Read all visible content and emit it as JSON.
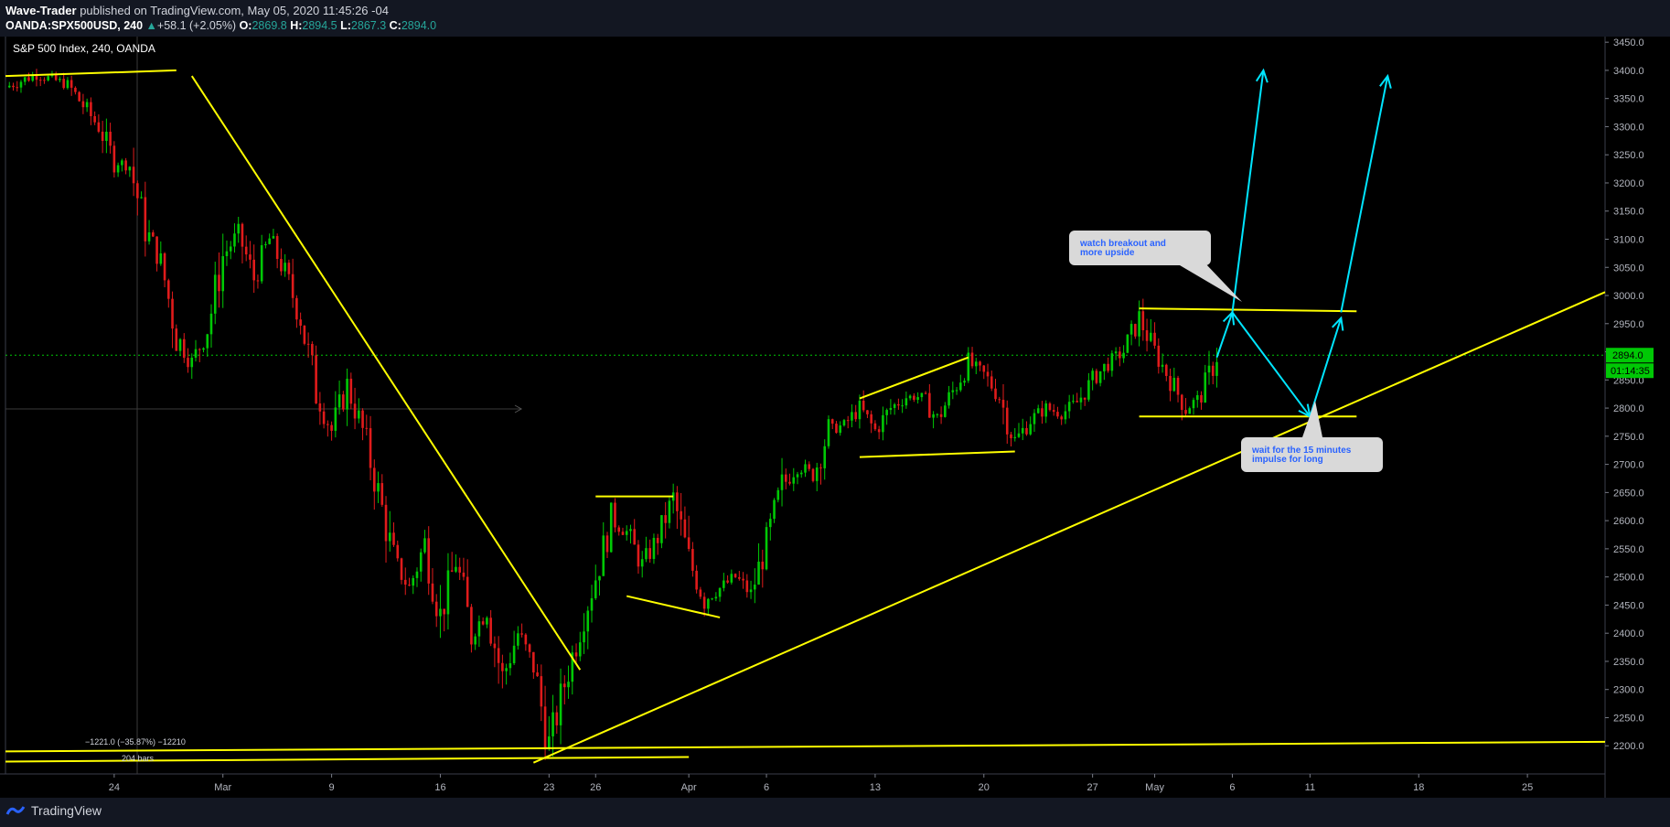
{
  "header": {
    "author": "Wave-Trader",
    "published_text": "published on TradingView.com, May 05, 2020 11:45:26 -04",
    "symbol": "OANDA:SPX500USD, 240",
    "change_arrow": "▲",
    "change": "+58.1 (+2.05%)",
    "o_label": "O:",
    "o_value": "2869.8",
    "h_label": "H:",
    "h_value": "2894.5",
    "l_label": "L:",
    "l_value": "2867.3",
    "c_label": "C:",
    "c_value": "2894.0"
  },
  "footer": {
    "brand": "TradingView",
    "brand_icon": "tradingview-logo-icon"
  },
  "colors": {
    "background": "#000000",
    "bull": "#00c805",
    "bear": "#e01b1b",
    "trendline": "#ffff00",
    "projection": "#00e5ff",
    "price_line": "#00c805",
    "callout_bg": "#d9d9d9",
    "callout_text": "#2962ff"
  },
  "chart_data": {
    "type": "candlestick",
    "title": "S&P 500 Index, 240, OANDA",
    "ylim": [
      2150,
      3460
    ],
    "y_ticks": [
      2200,
      2250,
      2300,
      2350,
      2400,
      2450,
      2500,
      2550,
      2600,
      2650,
      2700,
      2750,
      2800,
      2850,
      2900,
      2950,
      3000,
      3050,
      3100,
      3150,
      3200,
      3250,
      3300,
      3350,
      3400,
      3450
    ],
    "x_range": [
      "2020-02-17",
      "2020-05-30"
    ],
    "x_ticks": [
      {
        "date": "2020-02-24",
        "label": "24"
      },
      {
        "date": "2020-03-02",
        "label": "Mar"
      },
      {
        "date": "2020-03-09",
        "label": "9"
      },
      {
        "date": "2020-03-16",
        "label": "16"
      },
      {
        "date": "2020-03-23",
        "label": "23"
      },
      {
        "date": "2020-03-26",
        "label": "26"
      },
      {
        "date": "2020-04-01",
        "label": "Apr"
      },
      {
        "date": "2020-04-06",
        "label": "6"
      },
      {
        "date": "2020-04-13",
        "label": "13"
      },
      {
        "date": "2020-04-20",
        "label": "20"
      },
      {
        "date": "2020-04-27",
        "label": "27"
      },
      {
        "date": "2020-05-01",
        "label": "May"
      },
      {
        "date": "2020-05-06",
        "label": "6"
      },
      {
        "date": "2020-05-11",
        "label": "11"
      },
      {
        "date": "2020-05-18",
        "label": "18"
      },
      {
        "date": "2020-05-25",
        "label": "25"
      }
    ],
    "price_path": [
      [
        "2020-02-17",
        3370
      ],
      [
        "2020-02-19",
        3393
      ],
      [
        "2020-02-21",
        3375
      ],
      [
        "2020-02-23",
        3300
      ],
      [
        "2020-02-24",
        3240
      ],
      [
        "2020-02-25",
        3230
      ],
      [
        "2020-02-26",
        3120
      ],
      [
        "2020-02-27",
        3060
      ],
      [
        "2020-02-28",
        2930
      ],
      [
        "2020-02-29",
        2880
      ],
      [
        "2020-03-01",
        2940
      ],
      [
        "2020-03-02",
        3070
      ],
      [
        "2020-03-03",
        3110
      ],
      [
        "2020-03-04",
        3030
      ],
      [
        "2020-03-05",
        3100
      ],
      [
        "2020-03-06",
        3040
      ],
      [
        "2020-03-07",
        2960
      ],
      [
        "2020-03-08",
        2830
      ],
      [
        "2020-03-09",
        2760
      ],
      [
        "2020-03-10",
        2840
      ],
      [
        "2020-03-11",
        2760
      ],
      [
        "2020-03-12",
        2650
      ],
      [
        "2020-03-13",
        2530
      ],
      [
        "2020-03-14",
        2480
      ],
      [
        "2020-03-15",
        2560
      ],
      [
        "2020-03-16",
        2430
      ],
      [
        "2020-03-17",
        2530
      ],
      [
        "2020-03-18",
        2400
      ],
      [
        "2020-03-19",
        2440
      ],
      [
        "2020-03-20",
        2320
      ],
      [
        "2020-03-21",
        2400
      ],
      [
        "2020-03-22",
        2340
      ],
      [
        "2020-03-23",
        2200
      ],
      [
        "2020-03-24",
        2310
      ],
      [
        "2020-03-25",
        2410
      ],
      [
        "2020-03-26",
        2500
      ],
      [
        "2020-03-27",
        2600
      ],
      [
        "2020-03-28",
        2580
      ],
      [
        "2020-03-29",
        2520
      ],
      [
        "2020-03-30",
        2570
      ],
      [
        "2020-03-31",
        2640
      ],
      [
        "2020-04-01",
        2530
      ],
      [
        "2020-04-02",
        2460
      ],
      [
        "2020-04-03",
        2480
      ],
      [
        "2020-04-04",
        2500
      ],
      [
        "2020-04-05",
        2470
      ],
      [
        "2020-04-06",
        2560
      ],
      [
        "2020-04-07",
        2660
      ],
      [
        "2020-04-08",
        2700
      ],
      [
        "2020-04-09",
        2680
      ],
      [
        "2020-04-10",
        2760
      ],
      [
        "2020-04-11",
        2770
      ],
      [
        "2020-04-12",
        2800
      ],
      [
        "2020-04-13",
        2760
      ],
      [
        "2020-04-14",
        2800
      ],
      [
        "2020-04-15",
        2820
      ],
      [
        "2020-04-16",
        2820
      ],
      [
        "2020-04-17",
        2780
      ],
      [
        "2020-04-18",
        2830
      ],
      [
        "2020-04-19",
        2880
      ],
      [
        "2020-04-20",
        2860
      ],
      [
        "2020-04-21",
        2820
      ],
      [
        "2020-04-22",
        2740
      ],
      [
        "2020-04-23",
        2780
      ],
      [
        "2020-04-24",
        2800
      ],
      [
        "2020-04-25",
        2790
      ],
      [
        "2020-04-26",
        2810
      ],
      [
        "2020-04-27",
        2850
      ],
      [
        "2020-04-28",
        2880
      ],
      [
        "2020-04-29",
        2900
      ],
      [
        "2020-04-30",
        2960
      ],
      [
        "2020-05-01",
        2900
      ],
      [
        "2020-05-02",
        2850
      ],
      [
        "2020-05-03",
        2800
      ],
      [
        "2020-05-04",
        2820
      ],
      [
        "2020-05-05",
        2894
      ]
    ],
    "current_price_label": "2894.0",
    "countdown_label": "01:14:35",
    "measure_label_1": "−1221.0 (−35.87%) −12210",
    "measure_label_2": "204 bars",
    "trendlines": [
      {
        "from": [
          "2020-02-17",
          3390
        ],
        "to": [
          "2020-02-28",
          3400
        ]
      },
      {
        "from": [
          "2020-02-29",
          3390
        ],
        "to": [
          "2020-03-25",
          2335
        ]
      },
      {
        "from": [
          "2020-02-17",
          2190
        ],
        "to": [
          "2020-05-30",
          2207
        ]
      },
      {
        "from": [
          "2020-02-17",
          2172
        ],
        "to": [
          "2020-04-01",
          2180
        ]
      },
      {
        "from": [
          "2020-03-22",
          2170
        ],
        "to": [
          "2020-05-30",
          3006
        ]
      },
      {
        "from": [
          "2020-03-26",
          2643
        ],
        "to": [
          "2020-03-31",
          2643
        ]
      },
      {
        "from": [
          "2020-03-28",
          2466
        ],
        "to": [
          "2020-04-03",
          2428
        ]
      },
      {
        "from": [
          "2020-04-12",
          2817
        ],
        "to": [
          "2020-04-19",
          2890
        ]
      },
      {
        "from": [
          "2020-04-12",
          2713
        ],
        "to": [
          "2020-04-22",
          2723
        ]
      },
      {
        "from": [
          "2020-04-30",
          2977
        ],
        "to": [
          "2020-05-14",
          2972
        ]
      },
      {
        "from": [
          "2020-04-30",
          2785
        ],
        "to": [
          "2020-05-14",
          2785
        ]
      }
    ],
    "projection_arrows": [
      {
        "points": [
          [
            "2020-05-05",
            2890
          ],
          [
            "2020-05-06",
            2970
          ],
          [
            "2020-05-11",
            2785
          ],
          [
            "2020-05-13",
            2960
          ]
        ]
      },
      {
        "points": [
          [
            "2020-05-06",
            2970
          ],
          [
            "2020-05-08",
            3400
          ]
        ]
      },
      {
        "points": [
          [
            "2020-05-13",
            2970
          ],
          [
            "2020-05-16",
            3390
          ]
        ]
      }
    ],
    "callouts": [
      {
        "text_lines": [
          "watch breakout and",
          "more upside"
        ]
      },
      {
        "text_lines": [
          "wait for the 15 minutes",
          "impulse for long"
        ]
      }
    ]
  }
}
